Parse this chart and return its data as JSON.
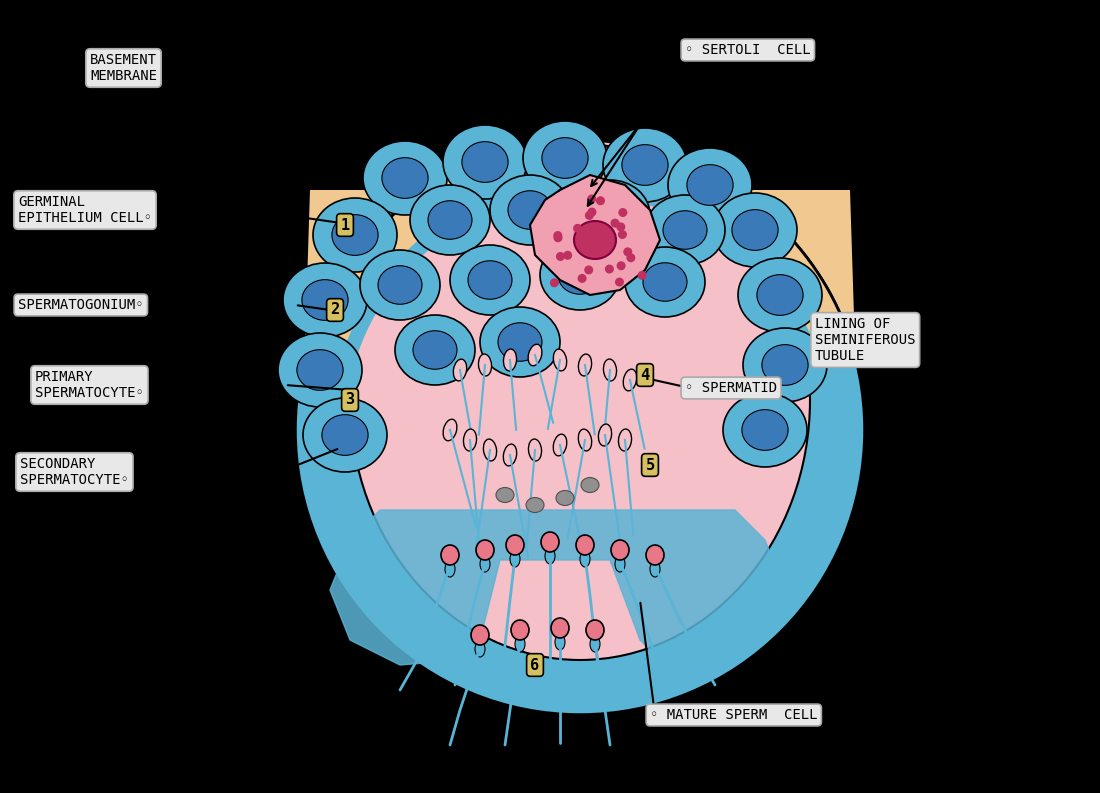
{
  "background_color": "#000000",
  "figure_size": [
    11.0,
    7.93
  ],
  "dpi": 100,
  "labels": {
    "basement_membrane": "BASEMENT\nMEMBRANE",
    "sertoli_cell": "◦ SERTOLI  CELL",
    "germinal_epithelium": "GERMINAL\nEPITHELIUM CELL◦",
    "spermatogonium": "SPERMATOGONIUM◦",
    "primary_spermatocyte": "PRIMARY\nSPERMATOCYTE◦",
    "secondary_spermatocyte": "SECONDARY\nSPERMATOCYTE◦",
    "lining_of": "LINING OF\nSEMINIFEROUS\nTUBULE",
    "spermatid": "◦ SPERMATID",
    "mature_sperm": "◦ MATURE SPERM  CELL"
  },
  "numbers": [
    "1",
    "2",
    "3",
    "4",
    "5",
    "6"
  ],
  "colors": {
    "black": "#000000",
    "blue_outer": "#5ab4d6",
    "pink_inner": "#f5c0c8",
    "tan_top": "#f0c890",
    "blue_cell": "#6ab8d8",
    "dark_blue_cell": "#3a7ab8",
    "label_bg": "#e8e8e8",
    "label_bg2": "#d8d8d8",
    "red_nucleus": "#c03060",
    "pink_cell_body": "#e87888",
    "sperm_head": "#e87888",
    "sperm_tail": "#5ab4d6",
    "gray_dot": "#888888",
    "white": "#ffffff",
    "outline": "#000000"
  }
}
